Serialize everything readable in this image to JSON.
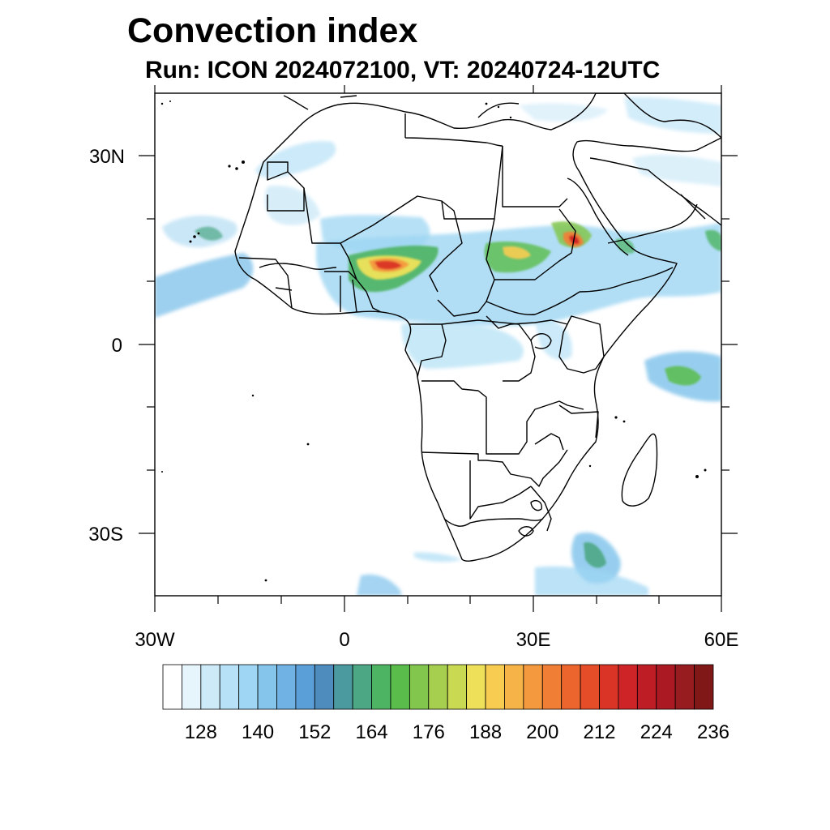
{
  "title": "Convection index",
  "subtitle": "Run: ICON 2024072100,  VT: 20240724-12UTC",
  "lat_labels": [
    "30N",
    "0",
    "30S"
  ],
  "lon_labels": [
    "30W",
    "0",
    "30E",
    "60E"
  ],
  "colorbar": {
    "colors": [
      "#ffffff",
      "#e6f4fc",
      "#cdeaf8",
      "#b6e1f6",
      "#9ed6f3",
      "#85c5ec",
      "#6fb2e3",
      "#5b9fd8",
      "#4d8cbd",
      "#4b9aa0",
      "#4ca784",
      "#4cb462",
      "#5abc4a",
      "#82c64d",
      "#a6cf4f",
      "#cad952",
      "#eee159",
      "#f8cc51",
      "#f6b348",
      "#f4993e",
      "#f07f35",
      "#ec652d",
      "#e54d29",
      "#da3427",
      "#ce2427",
      "#be1d25",
      "#ab1a22",
      "#961c1f",
      "#801818"
    ],
    "labels": [
      "128",
      "140",
      "152",
      "164",
      "176",
      "188",
      "200",
      "212",
      "224",
      "236"
    ]
  }
}
